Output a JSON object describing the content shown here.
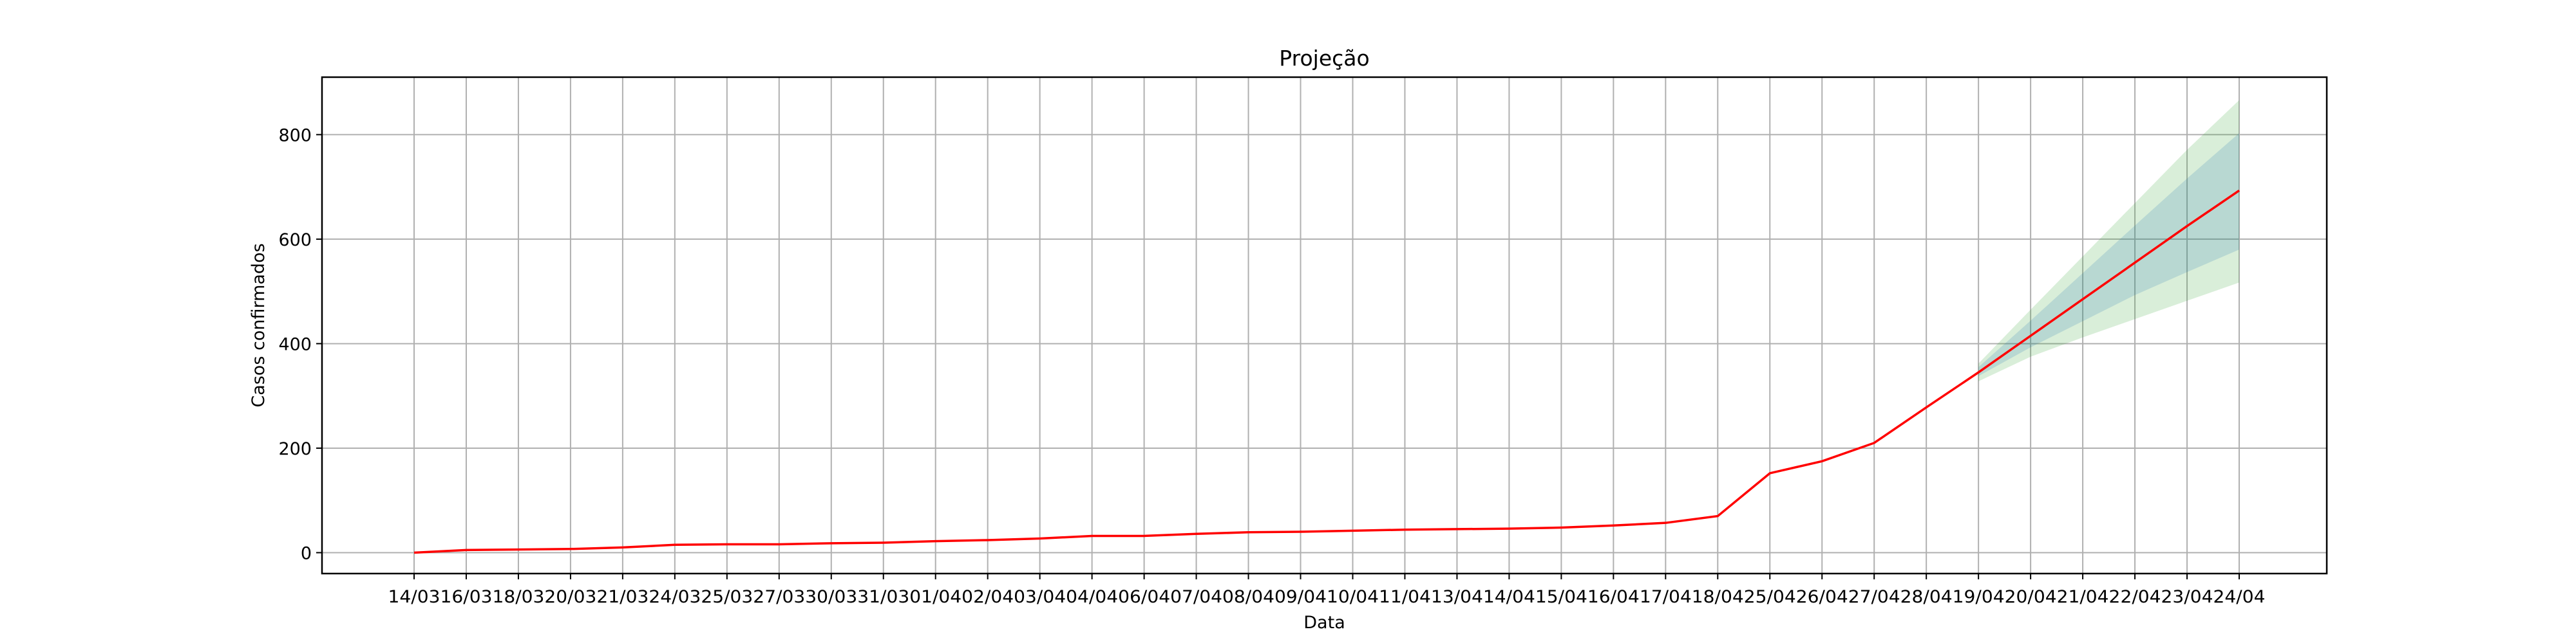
{
  "chart_data": {
    "type": "line",
    "title": "Projeção",
    "xlabel": "Data",
    "ylabel": "Casos confirmados",
    "categories": [
      "14/03",
      "16/03",
      "18/03",
      "20/03",
      "21/03",
      "24/03",
      "25/03",
      "27/03",
      "30/03",
      "31/03",
      "01/04",
      "02/04",
      "03/04",
      "04/04",
      "06/04",
      "07/04",
      "08/04",
      "09/04",
      "10/04",
      "11/04",
      "13/04",
      "14/04",
      "15/04",
      "16/04",
      "17/04",
      "18/04",
      "25/04",
      "26/04",
      "27/04",
      "28/04",
      "19/04",
      "20/04",
      "21/04",
      "22/04",
      "23/04",
      "24/04"
    ],
    "yticks": [
      0,
      200,
      400,
      600,
      800
    ],
    "ylim": [
      -40,
      910
    ],
    "grid": true,
    "colors": {
      "line": "#ff0000",
      "band_outer": "#2ca02c",
      "band_inner": "#1f77b4",
      "grid": "#b0b0b0"
    },
    "series": [
      {
        "kind": "line",
        "values": [
          0,
          5,
          6,
          7,
          10,
          15,
          16,
          16,
          18,
          19,
          22,
          24,
          27,
          32,
          32,
          36,
          39,
          40,
          42,
          44,
          45,
          46,
          48,
          52,
          57,
          70,
          152,
          175,
          210,
          278,
          345,
          415,
          485,
          555,
          625,
          693
        ]
      },
      {
        "kind": "band",
        "layer": "outer",
        "start_index": 30,
        "lower": [
          328,
          375,
          412,
          447,
          482,
          517
        ],
        "upper": [
          362,
          465,
          567,
          669,
          771,
          866
        ]
      },
      {
        "kind": "band",
        "layer": "inner",
        "start_index": 30,
        "lower": [
          338,
          393,
          443,
          493,
          537,
          580
        ],
        "upper": [
          355,
          444,
          535,
          626,
          716,
          803
        ]
      }
    ]
  }
}
